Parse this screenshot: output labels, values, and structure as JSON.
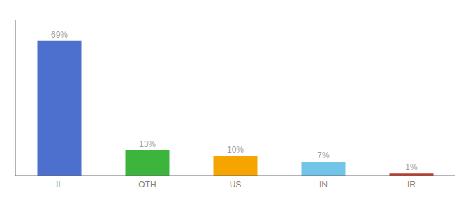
{
  "chart_data": {
    "type": "bar",
    "categories": [
      "IL",
      "OTH",
      "US",
      "IN",
      "IR"
    ],
    "values": [
      69,
      13,
      10,
      7,
      1
    ],
    "value_labels": [
      "69%",
      "13%",
      "10%",
      "7%",
      "1%"
    ],
    "colors": [
      "#4d6fce",
      "#3db53d",
      "#f5a400",
      "#72c4e8",
      "#c0392b"
    ],
    "ylim": [
      0,
      80
    ],
    "data_labels": true,
    "tick_labels": "x",
    "grid": false
  }
}
